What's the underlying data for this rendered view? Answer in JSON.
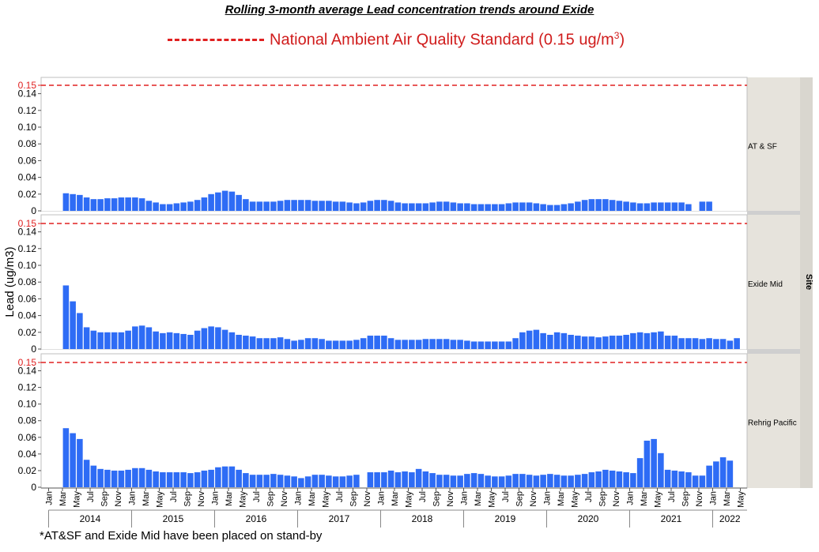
{
  "title": "Rolling 3-month average Lead concentration trends around Exide",
  "legend": {
    "label": "National Ambient Air Quality Standard (0.15 ug/m",
    "superscript": "3",
    "suffix": ")",
    "color": "#d01c1c"
  },
  "footnote": "*AT&SF and Exide Mid have been placed on stand-by",
  "strip_title": "Site",
  "bar_color": "#2e6cf5",
  "chart_data": {
    "type": "bar",
    "title": "Rolling 3-month average Lead concentration trends around Exide",
    "ylabel": "Lead (ug/m3)",
    "ylim": [
      0,
      0.15
    ],
    "yticks": [
      "0",
      "0.02",
      "0.04",
      "0.06",
      "0.08",
      "0.10",
      "0.12",
      "0.14"
    ],
    "reference_line": {
      "value": 0.15,
      "label": "0.15",
      "style": "dashed",
      "color": "#e02020"
    },
    "x_month_ticks": [
      "Jan",
      "Mar",
      "May",
      "Jul",
      "Sep",
      "Nov",
      "Jan",
      "Mar",
      "May",
      "Jul",
      "Sep",
      "Nov",
      "Jan",
      "Mar",
      "May",
      "Jul",
      "Sep",
      "Nov",
      "Jan",
      "Mar",
      "May",
      "Jul",
      "Sep",
      "Nov",
      "Jan",
      "Mar",
      "May",
      "Jul",
      "Sep",
      "Nov",
      "Jan",
      "Mar",
      "May",
      "Jul",
      "Sep",
      "Nov",
      "Jan",
      "Mar",
      "May",
      "Jul",
      "Sep",
      "Nov",
      "Jan",
      "Mar",
      "May",
      "Jul",
      "Sep",
      "Nov",
      "Jan",
      "Mar",
      "May"
    ],
    "x_year_labels": [
      "2014",
      "2015",
      "2016",
      "2017",
      "2018",
      "2019",
      "2020",
      "2021",
      "2022"
    ],
    "first_period": "2014-03",
    "period": "month",
    "panels": [
      {
        "site": "AT & SF",
        "values": [
          0.021,
          0.02,
          0.019,
          0.016,
          0.014,
          0.014,
          0.015,
          0.015,
          0.016,
          0.016,
          0.016,
          0.015,
          0.012,
          0.01,
          0.008,
          0.008,
          0.009,
          0.01,
          0.011,
          0.013,
          0.016,
          0.02,
          0.022,
          0.024,
          0.023,
          0.019,
          0.014,
          0.011,
          0.011,
          0.011,
          0.011,
          0.012,
          0.013,
          0.013,
          0.013,
          0.013,
          0.012,
          0.012,
          0.012,
          0.011,
          0.011,
          0.01,
          0.009,
          0.01,
          0.012,
          0.013,
          0.013,
          0.012,
          0.01,
          0.009,
          0.009,
          0.009,
          0.009,
          0.01,
          0.011,
          0.011,
          0.01,
          0.009,
          0.009,
          0.008,
          0.008,
          0.008,
          0.008,
          0.008,
          0.009,
          0.01,
          0.01,
          0.01,
          0.009,
          0.008,
          0.007,
          0.007,
          0.008,
          0.009,
          0.011,
          0.013,
          0.014,
          0.014,
          0.014,
          0.013,
          0.012,
          0.011,
          0.01,
          0.009,
          0.009,
          0.01,
          0.01,
          0.01,
          0.01,
          0.01,
          0.008,
          null,
          0.011,
          0.011
        ]
      },
      {
        "site": "Exide Mid",
        "values": [
          0.076,
          0.057,
          0.043,
          0.026,
          0.022,
          0.02,
          0.02,
          0.02,
          0.02,
          0.022,
          0.027,
          0.028,
          0.026,
          0.021,
          0.019,
          0.02,
          0.019,
          0.018,
          0.017,
          0.022,
          0.025,
          0.027,
          0.026,
          0.023,
          0.02,
          0.017,
          0.016,
          0.015,
          0.013,
          0.013,
          0.013,
          0.014,
          0.012,
          0.01,
          0.011,
          0.013,
          0.013,
          0.012,
          0.01,
          0.01,
          0.01,
          0.01,
          0.011,
          0.013,
          0.016,
          0.016,
          0.016,
          0.013,
          0.011,
          0.011,
          0.011,
          0.011,
          0.012,
          0.012,
          0.012,
          0.012,
          0.011,
          0.011,
          0.01,
          0.009,
          0.009,
          0.009,
          0.009,
          0.009,
          0.009,
          0.013,
          0.02,
          0.022,
          0.023,
          0.019,
          0.017,
          0.02,
          0.019,
          0.017,
          0.016,
          0.015,
          0.015,
          0.014,
          0.015,
          0.016,
          0.016,
          0.017,
          0.019,
          0.02,
          0.019,
          0.02,
          0.021,
          0.016,
          0.016,
          0.013,
          0.013,
          0.013,
          0.012,
          0.013,
          0.012,
          0.012,
          0.01,
          0.013
        ]
      },
      {
        "site": "Rehrig Pacific",
        "values": [
          0.071,
          0.065,
          0.058,
          0.033,
          0.026,
          0.022,
          0.021,
          0.02,
          0.02,
          0.021,
          0.023,
          0.023,
          0.021,
          0.019,
          0.018,
          0.018,
          0.018,
          0.018,
          0.017,
          0.018,
          0.02,
          0.021,
          0.024,
          0.025,
          0.025,
          0.021,
          0.017,
          0.015,
          0.015,
          0.015,
          0.016,
          0.015,
          0.014,
          0.013,
          0.011,
          0.013,
          0.015,
          0.015,
          0.014,
          0.013,
          0.013,
          0.014,
          0.015,
          null,
          0.018,
          0.018,
          0.018,
          0.02,
          0.018,
          0.019,
          0.018,
          0.022,
          0.019,
          0.017,
          0.015,
          0.015,
          0.014,
          0.014,
          0.016,
          0.017,
          0.016,
          0.014,
          0.013,
          0.013,
          0.014,
          0.016,
          0.016,
          0.015,
          0.014,
          0.015,
          0.016,
          0.015,
          0.014,
          0.014,
          0.015,
          0.016,
          0.018,
          0.019,
          0.021,
          0.02,
          0.019,
          0.018,
          0.017,
          0.035,
          0.056,
          0.058,
          0.041,
          0.021,
          0.02,
          0.019,
          0.018,
          0.014,
          0.014,
          0.026,
          0.031,
          0.036,
          0.032
        ]
      }
    ]
  }
}
